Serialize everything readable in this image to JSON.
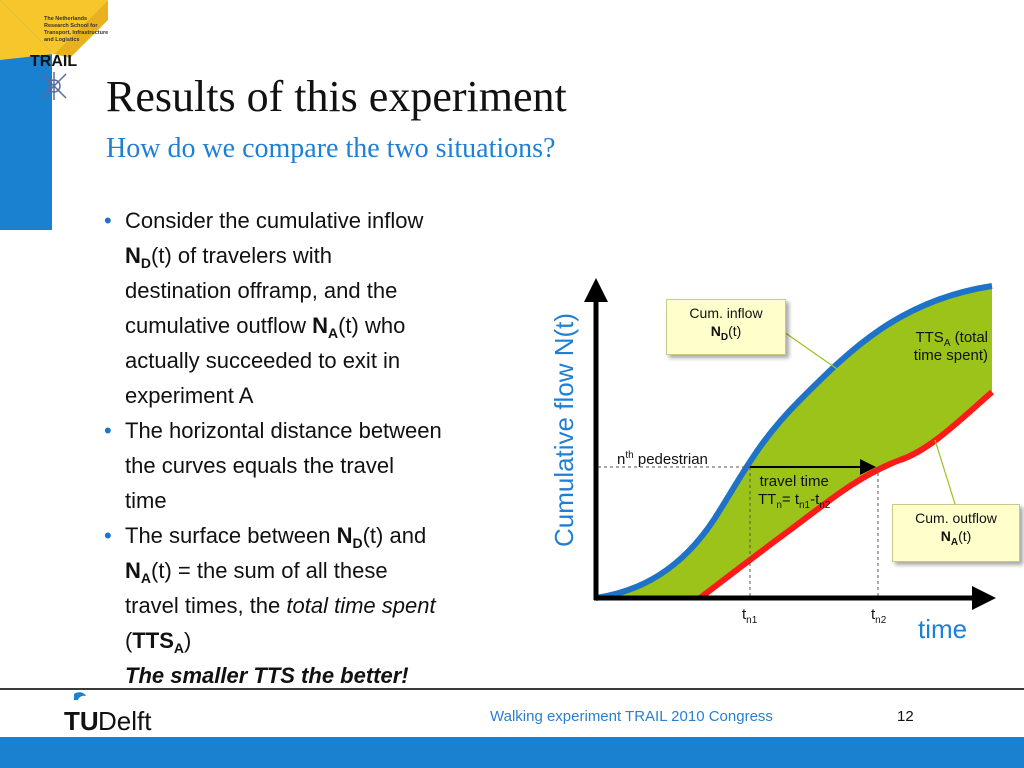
{
  "logo": {
    "trail_text": "TRAIL",
    "trail_small_lines": [
      "The Netherlands",
      "Research School for",
      "Transport, Infrastructure",
      "and Logistics"
    ],
    "tudelft_text": "Delft",
    "tu_text": "TU"
  },
  "slide": {
    "title": "Results of this experiment",
    "subtitle": "How do we compare the two situations?"
  },
  "bullets": {
    "b1_line1": "Consider the cumulative inflow",
    "b1_nd": "N",
    "b1_nd_sub": "D",
    "b1_line2": "(t) of travelers with",
    "b1_line3": "destination offramp, and the",
    "b1_line4a": "cumulative outflow ",
    "b1_na": "N",
    "b1_na_sub": "A",
    "b1_line4b": "(t) who",
    "b1_line5": "actually succeeded to exit in",
    "b1_line6": "experiment A",
    "b2_line1": "The horizontal distance between",
    "b2_line2": "the curves equals the travel",
    "b2_line3": "time",
    "b3_line1a": "The surface between ",
    "b3_nd": "N",
    "b3_nd_sub": "D",
    "b3_line1b": "(t) and",
    "b3_na": "N",
    "b3_na_sub": "A",
    "b3_line2": "(t) = the sum of all these",
    "b3_line3a": "travel times, the ",
    "b3_line3i": "total time spent",
    "b3_line4a": "(",
    "b3_tts": "TTS",
    "b3_tts_sub": "A",
    "b3_line4b": ")",
    "b3_line5": "The smaller TTS the better!"
  },
  "diagram": {
    "y_axis_label": "Cumulative flow N(t)",
    "x_axis_label": "time",
    "callout_inflow_line1": "Cum. inflow",
    "callout_inflow_n": "N",
    "callout_inflow_sub": "D",
    "callout_inflow_t": "(t)",
    "callout_outflow_line1": "Cum. outflow",
    "callout_outflow_n": "N",
    "callout_outflow_sub": "A",
    "callout_outflow_t": "(t)",
    "tts_a": "TTS",
    "tts_sub": "A",
    "tts_rest1": " (total",
    "tts_rest2": "time spent)",
    "nth_n": "n",
    "nth_sup": "th",
    "nth_rest": " pedestrian",
    "tt_line1": "travel time",
    "tt_tt": "TT",
    "tt_tt_sub": "n",
    "tt_eq": "= t",
    "tt_n1": "n1",
    "tt_minus": "-t",
    "tt_n2": "n2",
    "tn1_t": "t",
    "tn1_sub": "n1",
    "tn2_t": "t",
    "tn2_sub": "n2",
    "colors": {
      "inflow": "#1e73c8",
      "outflow": "#ff1a1a",
      "area": "#9cc31a",
      "axis": "#000000"
    }
  },
  "footer": {
    "text": "Walking experiment TRAIL 2010 Congress",
    "page": "12"
  }
}
